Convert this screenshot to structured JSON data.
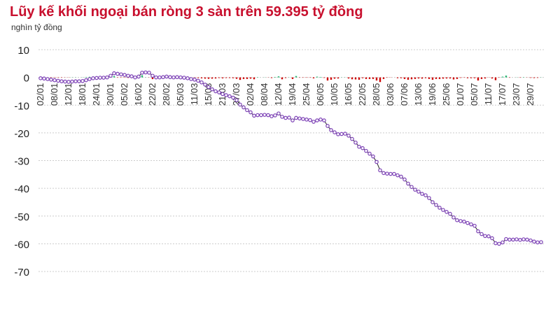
{
  "chart_data": {
    "type": "line",
    "title": "Lũy kế khối ngoại bán ròng 3 sàn trên 59.395 tỷ đồng",
    "ylabel": "nghìn tỷ đồng",
    "ylim": [
      -70,
      10
    ],
    "yticks": [
      10,
      0,
      -10,
      -20,
      -30,
      -40,
      -50,
      -60,
      -70
    ],
    "grid": true,
    "x_tick_labels": [
      "02/01",
      "08/01",
      "12/01",
      "18/01",
      "24/01",
      "30/01",
      "05/02",
      "16/02",
      "22/02",
      "28/02",
      "05/03",
      "11/03",
      "15/03",
      "21/03",
      "27/03",
      "02/04",
      "08/04",
      "12/04",
      "19/04",
      "25/04",
      "06/05",
      "10/05",
      "16/05",
      "22/05",
      "28/05",
      "03/06",
      "07/06",
      "13/06",
      "19/06",
      "25/06",
      "01/07",
      "05/07",
      "11/07",
      "17/07",
      "23/07",
      "29/07"
    ],
    "tick_every_n_points": 4,
    "colors": {
      "line": "#222222",
      "marker": "#7b3fb5",
      "bar_negative": "#cc0000",
      "bar_positive": "#2bb673",
      "title": "#c8102e"
    },
    "cumulative": [
      -0.3,
      -0.4,
      -0.6,
      -0.8,
      -1.0,
      -1.2,
      -1.4,
      -1.5,
      -1.6,
      -1.5,
      -1.4,
      -1.4,
      -1.3,
      -1.0,
      -0.6,
      -0.3,
      -0.2,
      -0.1,
      -0.1,
      0.0,
      0.6,
      1.5,
      1.3,
      1.1,
      0.9,
      0.6,
      0.4,
      0.0,
      0.3,
      1.7,
      1.8,
      1.7,
      0.6,
      0.0,
      0.0,
      0.1,
      0.3,
      0.1,
      0.0,
      0.1,
      0.0,
      -0.1,
      -0.3,
      -0.6,
      -0.8,
      -1.2,
      -1.8,
      -2.6,
      -3.5,
      -4.3,
      -5.0,
      -5.4,
      -6.0,
      -6.4,
      -6.8,
      -7.3,
      -8.2,
      -9.8,
      -10.8,
      -11.8,
      -12.6,
      -13.8,
      -13.6,
      -13.6,
      -13.5,
      -13.6,
      -14.0,
      -13.7,
      -13.0,
      -14.2,
      -14.6,
      -14.5,
      -15.5,
      -14.6,
      -14.8,
      -15.0,
      -15.2,
      -15.4,
      -16.0,
      -15.5,
      -15.2,
      -15.5,
      -17.5,
      -19.0,
      -19.8,
      -20.5,
      -20.4,
      -20.3,
      -21.0,
      -22.2,
      -23.5,
      -25.0,
      -25.5,
      -26.5,
      -27.5,
      -28.5,
      -30.5,
      -33.5,
      -34.5,
      -34.7,
      -34.8,
      -34.8,
      -35.3,
      -35.8,
      -36.8,
      -38.3,
      -39.5,
      -40.5,
      -41.2,
      -42.0,
      -42.5,
      -43.5,
      -45.0,
      -46.0,
      -47.0,
      -47.8,
      -48.5,
      -49.2,
      -50.5,
      -51.5,
      -51.8,
      -52.0,
      -52.5,
      -53.0,
      -53.5,
      -55.5,
      -56.5,
      -57.2,
      -57.3,
      -58.0,
      -59.8,
      -60.0,
      -59.5,
      -58.3,
      -58.5,
      -58.5,
      -58.4,
      -58.6,
      -58.4,
      -58.5,
      -58.8,
      -59.2,
      -59.5,
      -59.4
    ]
  }
}
